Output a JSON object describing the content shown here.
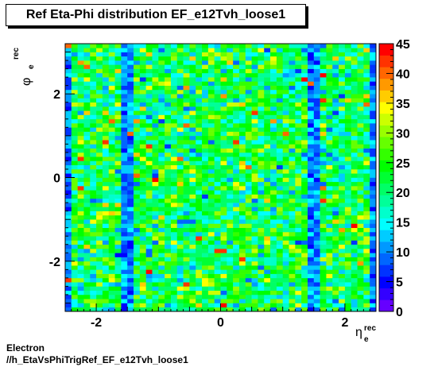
{
  "title": "Ref Eta-Phi distribution EF_e12Tvh_loose1",
  "footer": {
    "line1": "Electron",
    "line2": "//h_EtaVsPhiTrigRef_EF_e12Tvh_loose1"
  },
  "chart_data": {
    "type": "heatmap",
    "title": "Ref Eta-Phi distribution EF_e12Tvh_loose1",
    "xlabel": {
      "symbol": "η",
      "sub": "e",
      "sup": "rec"
    },
    "ylabel": {
      "symbol": "φ",
      "sub": "e",
      "sup": "rec"
    },
    "xlim": [
      -2.5,
      2.5
    ],
    "ylim": [
      -3.2,
      3.2
    ],
    "x_ticks": [
      -2,
      0,
      2
    ],
    "y_ticks": [
      -2,
      0,
      2
    ],
    "colorbar_ticks": [
      0,
      5,
      10,
      15,
      20,
      25,
      30,
      35,
      40,
      45
    ],
    "z_range": [
      0,
      45
    ],
    "nbins_x": 50,
    "nbins_y": 64,
    "typical_value": 22,
    "low_columns_eta": [
      -2.45,
      -1.5,
      1.5,
      2.45
    ],
    "low_column_value": 10,
    "palette": [
      "#6600ff",
      "#3300ff",
      "#0000ff",
      "#0033ff",
      "#0066ff",
      "#0099ff",
      "#00ccff",
      "#00ffff",
      "#00ffcc",
      "#00ff99",
      "#00ff66",
      "#00ff33",
      "#00ff00",
      "#33ff00",
      "#66ff00",
      "#99ff00",
      "#ccff00",
      "#ffff00",
      "#ffcc00",
      "#ff9900",
      "#ff6600",
      "#ff3300",
      "#ff0000"
    ]
  }
}
